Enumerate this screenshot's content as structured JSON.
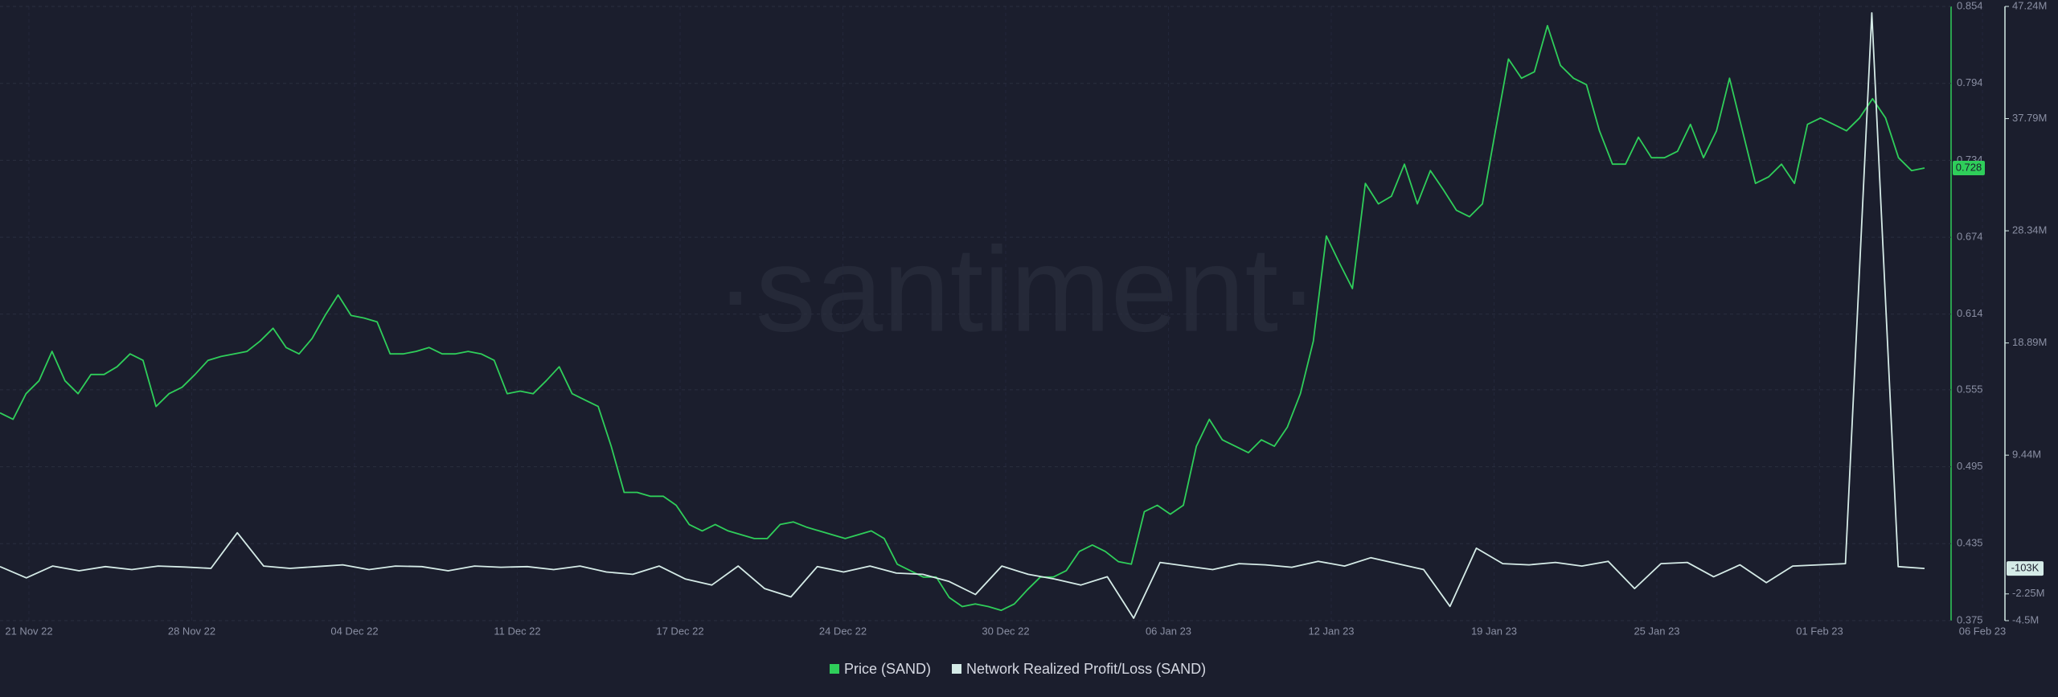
{
  "chart_data": {
    "type": "line",
    "watermark": "·santiment·",
    "xtick_labels": [
      "21 Nov 22",
      "28 Nov 22",
      "04 Dec 22",
      "11 Dec 22",
      "17 Dec 22",
      "24 Dec 22",
      "30 Dec 22",
      "06 Jan 23",
      "12 Jan 23",
      "19 Jan 23",
      "25 Jan 23",
      "01 Feb 23",
      "06 Feb 23"
    ],
    "ylim": [
      0.375,
      0.854
    ],
    "yticks": [
      0.375,
      0.435,
      0.495,
      0.555,
      0.614,
      0.674,
      0.734,
      0.794,
      0.854
    ],
    "y2lim": [
      -4500000,
      47240000
    ],
    "y2ticks": [
      {
        "value": -4500000,
        "label": "-4.5M"
      },
      {
        "value": -2250000,
        "label": "-2.25M"
      },
      {
        "value": 9440000,
        "label": "9.44M"
      },
      {
        "value": 18890000,
        "label": "18.89M"
      },
      {
        "value": 28340000,
        "label": "28.34M"
      },
      {
        "value": 37790000,
        "label": "37.79M"
      },
      {
        "value": 47240000,
        "label": "47.24M"
      }
    ],
    "grid": true,
    "legend": "bottom",
    "series": [
      {
        "name": "Price (SAND)",
        "color": "#2fce5a",
        "axis": "y",
        "current": 0.728,
        "values": [
          0.537,
          0.532,
          0.552,
          0.562,
          0.585,
          0.562,
          0.552,
          0.567,
          0.567,
          0.573,
          0.583,
          0.578,
          0.542,
          0.552,
          0.557,
          0.567,
          0.578,
          0.581,
          0.583,
          0.585,
          0.593,
          0.603,
          0.588,
          0.583,
          0.595,
          0.613,
          0.629,
          0.613,
          0.611,
          0.608,
          0.583,
          0.583,
          0.585,
          0.588,
          0.583,
          0.583,
          0.585,
          0.583,
          0.578,
          0.552,
          0.554,
          0.552,
          0.562,
          0.573,
          0.552,
          0.547,
          0.542,
          0.511,
          0.475,
          0.475,
          0.472,
          0.472,
          0.465,
          0.45,
          0.445,
          0.45,
          0.445,
          0.442,
          0.439,
          0.439,
          0.45,
          0.452,
          0.448,
          0.445,
          0.442,
          0.439,
          0.442,
          0.445,
          0.439,
          0.419,
          0.414,
          0.409,
          0.409,
          0.393,
          0.386,
          0.388,
          0.386,
          0.383,
          0.388,
          0.399,
          0.409,
          0.409,
          0.414,
          0.429,
          0.434,
          0.429,
          0.421,
          0.419,
          0.46,
          0.465,
          0.458,
          0.465,
          0.511,
          0.532,
          0.516,
          0.511,
          0.506,
          0.516,
          0.511,
          0.526,
          0.552,
          0.593,
          0.675,
          0.654,
          0.634,
          0.716,
          0.7,
          0.706,
          0.731,
          0.7,
          0.726,
          0.711,
          0.695,
          0.69,
          0.7,
          0.757,
          0.813,
          0.798,
          0.803,
          0.839,
          0.808,
          0.798,
          0.793,
          0.757,
          0.731,
          0.731,
          0.752,
          0.736,
          0.736,
          0.741,
          0.762,
          0.736,
          0.757,
          0.798,
          0.757,
          0.716,
          0.721,
          0.731,
          0.716,
          0.762,
          0.767,
          0.762,
          0.757,
          0.767,
          0.782,
          0.767,
          0.736,
          0.726,
          0.728
        ]
      },
      {
        "name": "Network Realized Profit/Loss (SAND)",
        "color": "#d5ebe7",
        "axis": "y2",
        "current": {
          "value": -103000,
          "label": "-103K"
        },
        "values": [
          50000,
          -900000,
          100000,
          -300000,
          50000,
          -200000,
          100000,
          20000,
          -100000,
          2900000,
          100000,
          -100000,
          50000,
          200000,
          -200000,
          100000,
          50000,
          -300000,
          100000,
          0,
          50000,
          -200000,
          100000,
          -400000,
          -600000,
          100000,
          -1000000,
          -1500000,
          100000,
          -1800000,
          -2500000,
          50000,
          -400000,
          100000,
          -500000,
          -600000,
          -1200000,
          -2300000,
          100000,
          -600000,
          -1000000,
          -1500000,
          -800000,
          -4300000,
          400000,
          100000,
          -200000,
          300000,
          200000,
          0,
          500000,
          100000,
          800000,
          300000,
          -200000,
          -3300000,
          1600000,
          300000,
          200000,
          400000,
          100000,
          500000,
          -1800000,
          300000,
          400000,
          -800000,
          200000,
          -1300000,
          100000,
          200000,
          300000,
          46700000,
          50000,
          -103000
        ]
      }
    ]
  }
}
